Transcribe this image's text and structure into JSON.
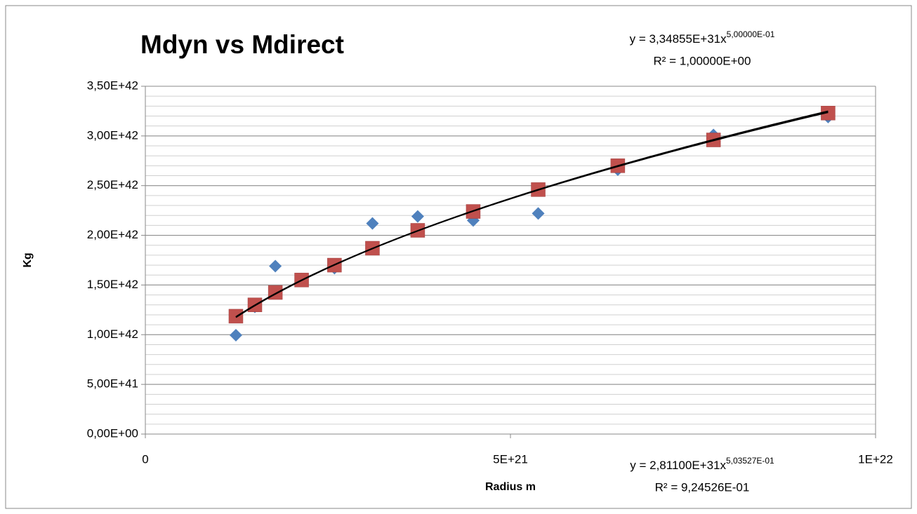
{
  "chart_data": {
    "type": "scatter",
    "title": "Mdyn vs Mdirect",
    "x_label": "Radius m",
    "y_label": "Kg",
    "xlim": [
      0,
      1e+22
    ],
    "xticks": [
      0,
      {
        "value": 5e+21,
        "label": "5E+21"
      },
      {
        "value": 1e+22,
        "label": "1E+22"
      }
    ],
    "ylim": [
      0,
      3.5e+42
    ],
    "yticks": [
      {
        "value": 0,
        "label": "0,00E+00"
      },
      {
        "value": 5e+41,
        "label": "5,00E+41"
      },
      {
        "value": 1e+42,
        "label": "1,00E+42"
      },
      {
        "value": 1.5e+42,
        "label": "1,50E+42"
      },
      {
        "value": 2e+42,
        "label": "2,00E+42"
      },
      {
        "value": 2.5e+42,
        "label": "2,50E+42"
      },
      {
        "value": 3e+42,
        "label": "3,00E+42"
      },
      {
        "value": 3.5e+42,
        "label": "3,50E+42"
      }
    ],
    "grid": true,
    "minor_grid": {
      "step": 1e+41
    },
    "series": [
      {
        "color": "#4f81bd",
        "marker": "diamond",
        "x": [
          1.24e+21,
          1.5e+21,
          1.78e+21,
          2.14e+21,
          2.59e+21,
          3.11e+21,
          3.73e+21,
          4.49e+21,
          5.38e+21,
          6.47e+21,
          7.78e+21,
          9.35e+21
        ],
        "values": [
          9.95e+41,
          1.28e+42,
          1.69e+42,
          1.56e+42,
          1.67e+42,
          2.12e+42,
          2.19e+42,
          2.15e+42,
          2.22e+42,
          2.66e+42,
          3.01e+42,
          3.19e+42
        ],
        "trendline": {
          "a": 2.811e+31,
          "b": 0.503527,
          "equation": "y = 2,81100E+31x",
          "exponent": "5,03527E-01",
          "r2": "R² = 9,24526E-01"
        }
      },
      {
        "color": "#c0504d",
        "marker": "square",
        "x": [
          1.24e+21,
          1.5e+21,
          1.78e+21,
          2.14e+21,
          2.59e+21,
          3.11e+21,
          3.73e+21,
          4.49e+21,
          5.38e+21,
          6.47e+21,
          7.78e+21,
          9.35e+21
        ],
        "values": [
          1.186e+42,
          1.3e+42,
          1.425e+42,
          1.55e+42,
          1.7e+42,
          1.87e+42,
          2.05e+42,
          2.24e+42,
          2.46e+42,
          2.7e+42,
          2.96e+42,
          3.23e+42
        ],
        "trendline": {
          "a": 3.34855e+31,
          "b": 0.5,
          "equation": "y = 3,34855E+31x",
          "exponent": "5,00000E-01",
          "r2": "R² = 1,00000E+00"
        }
      }
    ]
  }
}
